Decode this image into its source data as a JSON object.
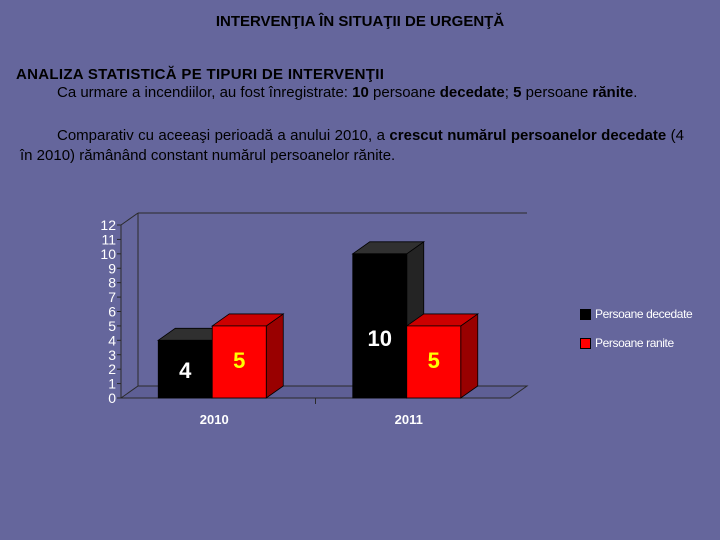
{
  "page": {
    "title": "INTERVENŢIA ÎN SITUAŢII DE URGENŢĂ",
    "section_title": "ANALIZA  STATISTICĂ   PE  TIPURI  DE  INTERVENŢII",
    "paragraph1": {
      "part1": "Ca  urmare  a  incendiilor,   au  fost  înregistrate:  ",
      "bold1": "10",
      "part2": "  persoane  ",
      "bold2": "decedate",
      "part3": ";  ",
      "bold3": "5",
      "part4": "  persoane  ",
      "bold4": "rănite",
      "part5": "."
    },
    "paragraph2": {
      "part1": "Comparativ  cu  aceeaşi  perioadă  a  anului  2010,  a  ",
      "bold1": "crescut",
      "part2": "   ",
      "bold2": "numărul persoanelor decedate",
      "part3": " (4 în 2010) rămânând constant numărul persoanelor rănite."
    }
  },
  "chart_data": {
    "type": "bar",
    "categories": [
      "2010",
      "2011"
    ],
    "series": [
      {
        "name": "Persoane decedate",
        "values": [
          4,
          10
        ],
        "color": "#000000",
        "label_color": "#ffffff"
      },
      {
        "name": "Persoane ranite",
        "values": [
          5,
          5
        ],
        "color": "#ff0000",
        "label_color": "#ffff00"
      }
    ],
    "ylim": [
      0,
      12
    ],
    "yticks": [
      0,
      1,
      2,
      3,
      4,
      5,
      6,
      7,
      8,
      9,
      10,
      11,
      12
    ],
    "legend_position": "right",
    "grid": false,
    "style": "3d"
  }
}
